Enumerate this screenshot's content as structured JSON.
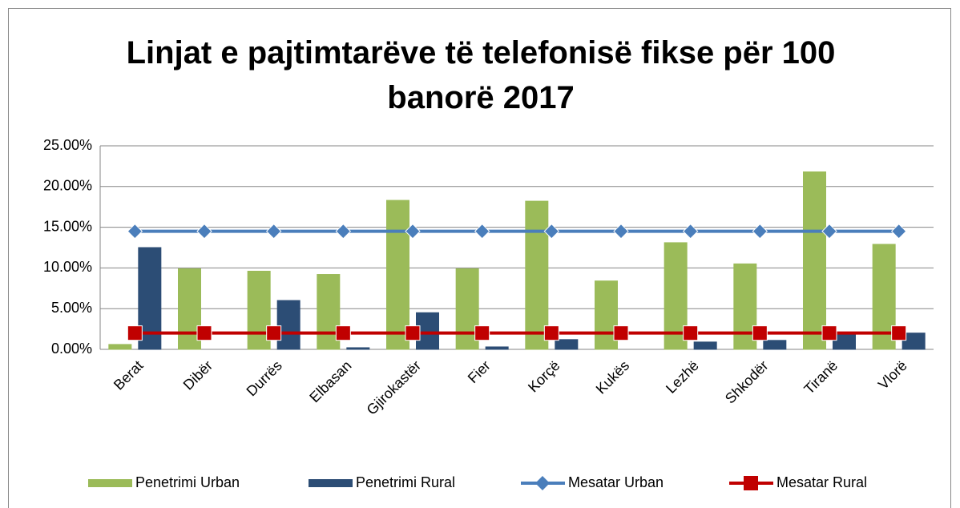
{
  "chart_data": {
    "type": "bar-line",
    "title": "Linjat e pajtimtarëve të telefonisë fikse për 100 banorë 2017",
    "categories": [
      "Berat",
      "Dibër",
      "Durrës",
      "Elbasan",
      "Gjirokastër",
      "Fier",
      "Korçë",
      "Kukës",
      "Lezhë",
      "Shkodër",
      "Tiranë",
      "Vlorë"
    ],
    "series": [
      {
        "name": "Penetrimi Urban",
        "type": "bar",
        "color": "#9bbb59",
        "values": [
          0.6,
          9.9,
          9.6,
          9.2,
          18.3,
          9.9,
          18.2,
          8.4,
          13.1,
          10.5,
          21.8,
          12.9
        ]
      },
      {
        "name": "Penetrimi Rural",
        "type": "bar",
        "color": "#2c4d75",
        "values": [
          12.5,
          0,
          6.0,
          0.2,
          4.5,
          0.3,
          1.2,
          0,
          0.9,
          1.1,
          1.8,
          2.0
        ]
      },
      {
        "name": "Mesatar Urban",
        "type": "line",
        "color": "#4a7ebb",
        "values": [
          14.5,
          14.5,
          14.5,
          14.5,
          14.5,
          14.5,
          14.5,
          14.5,
          14.5,
          14.5,
          14.5,
          14.5
        ]
      },
      {
        "name": "Mesatar Rural",
        "type": "line",
        "color": "#c00000",
        "values": [
          2.0,
          2.0,
          2.0,
          2.0,
          2.0,
          2.0,
          2.0,
          2.0,
          2.0,
          2.0,
          2.0,
          2.0
        ]
      }
    ],
    "ylim": [
      0,
      25
    ],
    "yticks": [
      {
        "value": 0,
        "label": "0.00%"
      },
      {
        "value": 5,
        "label": "5.00%"
      },
      {
        "value": 10,
        "label": "10.00%"
      },
      {
        "value": 15,
        "label": "15.00%"
      },
      {
        "value": 20,
        "label": "20.00%"
      },
      {
        "value": 25,
        "label": "25.00%"
      }
    ],
    "grid": true,
    "legend": "bottom"
  }
}
